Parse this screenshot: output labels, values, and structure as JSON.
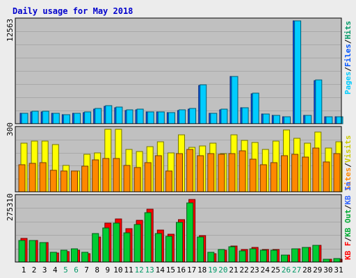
{
  "title": "Daily usage for May 2018",
  "colors": {
    "background": "#ececec",
    "plot": "#c0c0c0",
    "border": "#7f7f7f",
    "title": "#0000cc",
    "pages": "#00ccff",
    "files": "#0055ff",
    "hits": "#009966",
    "visits": "#ffff00",
    "sites": "#ff8800",
    "kb_in": "#3366ff",
    "kb_out": "#00cc33",
    "kb_f": "#ff0000",
    "weekend_day": "#009966"
  },
  "legend": {
    "top": [
      "Hits",
      "/",
      "Files",
      "/",
      "Pages"
    ],
    "middle": [
      "Visits",
      "/",
      "Sites"
    ],
    "bottom": [
      "KB In",
      "/",
      "KB Out",
      "/",
      "KB F"
    ]
  },
  "y_max_labels": {
    "top": "12563",
    "middle": "300",
    "bottom": "275310"
  },
  "days": [
    "1",
    "2",
    "3",
    "4",
    "5",
    "6",
    "7",
    "8",
    "9",
    "10",
    "11",
    "12",
    "13",
    "14",
    "15",
    "16",
    "17",
    "18",
    "19",
    "20",
    "21",
    "22",
    "23",
    "24",
    "25",
    "26",
    "27",
    "28",
    "29",
    "30",
    "31"
  ],
  "weekend_days": [
    "5",
    "6",
    "12",
    "13",
    "19",
    "20",
    "26",
    "27"
  ],
  "chart_data": [
    {
      "type": "bar",
      "name": "hits-files-pages",
      "categories": [
        "1",
        "2",
        "3",
        "4",
        "5",
        "6",
        "7",
        "8",
        "9",
        "10",
        "11",
        "12",
        "13",
        "14",
        "15",
        "16",
        "17",
        "18",
        "19",
        "20",
        "21",
        "22",
        "23",
        "24",
        "25",
        "26",
        "27",
        "28",
        "29",
        "30",
        "31"
      ],
      "ylim": [
        0,
        12563
      ],
      "series": [
        {
          "name": "Pages",
          "values": [
            1270,
            1460,
            1460,
            1270,
            1090,
            1270,
            1390,
            1800,
            2160,
            1990,
            1630,
            1730,
            1450,
            1450,
            1360,
            1640,
            1810,
            4690,
            1270,
            1720,
            5730,
            1920,
            3670,
            1180,
            1000,
            820,
            12563,
            1000,
            5290,
            820,
            820
          ]
        },
        {
          "name": "Files",
          "values": [
            1300,
            1490,
            1490,
            1300,
            1120,
            1300,
            1420,
            1830,
            2190,
            2020,
            1660,
            1760,
            1480,
            1480,
            1390,
            1670,
            1840,
            4720,
            1300,
            1750,
            5760,
            1950,
            3700,
            1210,
            1030,
            850,
            12563,
            1030,
            5320,
            850,
            850
          ]
        }
      ]
    },
    {
      "type": "bar",
      "name": "visits-sites",
      "categories": [
        "1",
        "2",
        "3",
        "4",
        "5",
        "6",
        "7",
        "8",
        "9",
        "10",
        "11",
        "12",
        "13",
        "14",
        "15",
        "16",
        "17",
        "18",
        "19",
        "20",
        "21",
        "22",
        "23",
        "24",
        "25",
        "26",
        "27",
        "28",
        "29",
        "30",
        "31"
      ],
      "ylim": [
        0,
        300
      ],
      "series": [
        {
          "name": "Visits",
          "values": [
            232,
            244,
            244,
            225,
            128,
            99,
            181,
            187,
            300,
            300,
            203,
            193,
            216,
            240,
            187,
            272,
            213,
            220,
            232,
            184,
            272,
            246,
            237,
            203,
            244,
            296,
            256,
            234,
            288,
            209,
            240
          ]
        },
        {
          "name": "Sites",
          "values": [
            131,
            135,
            140,
            104,
            99,
            99,
            123,
            154,
            160,
            160,
            128,
            116,
            140,
            172,
            100,
            183,
            203,
            172,
            183,
            181,
            183,
            195,
            158,
            131,
            140,
            172,
            181,
            166,
            210,
            143,
            183
          ]
        }
      ]
    },
    {
      "type": "bar",
      "name": "kb",
      "categories": [
        "1",
        "2",
        "3",
        "4",
        "5",
        "6",
        "7",
        "8",
        "9",
        "10",
        "11",
        "12",
        "13",
        "14",
        "15",
        "16",
        "17",
        "18",
        "19",
        "20",
        "21",
        "22",
        "23",
        "24",
        "25",
        "26",
        "27",
        "28",
        "29",
        "30",
        "31"
      ],
      "ylim": [
        0,
        275310
      ],
      "series": [
        {
          "name": "KB F",
          "values": [
            100000,
            91000,
            82000,
            38000,
            43000,
            50000,
            37000,
            106000,
            165000,
            183000,
            142000,
            177000,
            226000,
            136000,
            118000,
            181000,
            267000,
            112000,
            37000,
            51000,
            67000,
            52000,
            61000,
            53000,
            53000,
            30000,
            55000,
            61000,
            71000,
            12000,
            13000
          ]
        },
        {
          "name": "KB Out",
          "values": [
            93000,
            91000,
            82000,
            41000,
            51000,
            55000,
            40000,
            120000,
            146000,
            165000,
            124000,
            160000,
            209000,
            121000,
            110000,
            168000,
            252000,
            107000,
            40000,
            53000,
            64000,
            46000,
            55000,
            50000,
            51000,
            30000,
            56000,
            63000,
            71000,
            13000,
            14000
          ]
        }
      ]
    }
  ]
}
